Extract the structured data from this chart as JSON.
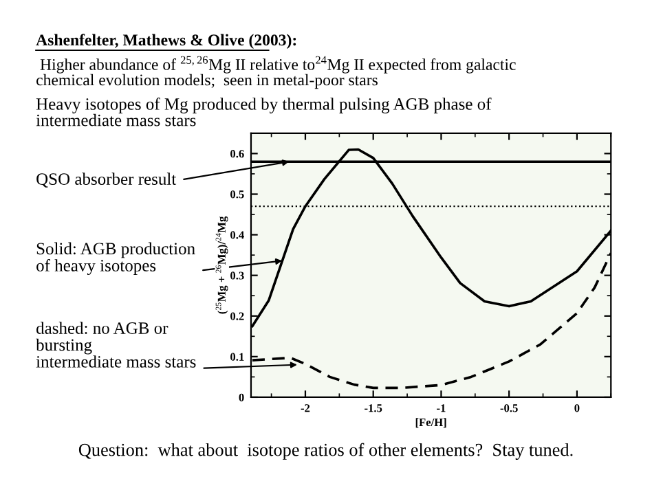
{
  "chart_data": {
    "type": "line",
    "title": "Ashenfelter, Mathews & Olive (2003):",
    "subtitle": " Higher abundance of $^{25,26}$Mg II relative to$^{24}$Mg II expected from galactic\nchemical evolution models;  seen in metal-poor stars",
    "xlabel": "[Fe/H]",
    "ylabel": "($^{25}$Mg + $^{26}$Mg)/$^{24}$Mg",
    "series": [
      {
        "color": "#000000",
        "line_style": "solid",
        "x": [
          -2.39,
          -2.27,
          -2.09,
          -2.0,
          -1.86,
          -1.68,
          -1.61,
          -1.5,
          -1.36,
          -1.21,
          -1.0,
          -0.86,
          -0.68,
          -0.5,
          -0.34,
          0.0,
          0.25
        ],
        "values": [
          0.175,
          0.238,
          0.414,
          0.47,
          0.537,
          0.609,
          0.61,
          0.589,
          0.526,
          0.446,
          0.344,
          0.281,
          0.236,
          0.224,
          0.236,
          0.31,
          0.41
        ]
      },
      {
        "color": "#000000",
        "line_style": "dashed",
        "x": [
          -2.39,
          -2.11,
          -2.0,
          -1.82,
          -1.64,
          -1.5,
          -1.29,
          -1.0,
          -0.78,
          -0.5,
          -0.27,
          0.0,
          0.13,
          0.25
        ],
        "values": [
          0.091,
          0.097,
          0.082,
          0.05,
          0.031,
          0.023,
          0.023,
          0.03,
          0.05,
          0.088,
          0.13,
          0.207,
          0.27,
          0.355
        ]
      }
    ],
    "ref_lines": [
      {
        "axis": "y",
        "value": 0.58,
        "color": "#000000",
        "line_style": "solid"
      },
      {
        "axis": "y",
        "value": 0.47,
        "color": "#000000",
        "line_style": "dotted"
      }
    ],
    "annotations": [
      "Heavy isotopes of Mg produced by thermal pulsing AGB phase of\nintermediate mass stars",
      {
        "text": "QSO absorber result",
        "x": -2.12,
        "y": 0.58
      },
      {
        "text": "Solid: AGB production\nof heavy isotopes",
        "x": -2.17,
        "y": 0.336
      },
      {
        "text": "dashed: no AGB or\nbursting\nintermediate mass stars",
        "x": -2.06,
        "y": 0.08
      },
      "Question:  what about  isotope ratios of other elements?  Stay tuned."
    ],
    "xlim": [
      -2.4,
      0.25
    ],
    "ylim": [
      0,
      0.65
    ],
    "xticks": [
      -2,
      -1.5,
      -1,
      -0.5,
      0
    ],
    "yticks": [
      0,
      0.1,
      0.2,
      0.3,
      0.4,
      0.5,
      0.6
    ],
    "grid": false,
    "legend": false,
    "marker": "none"
  }
}
